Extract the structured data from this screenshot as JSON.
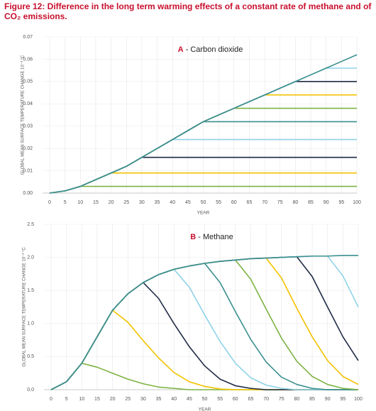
{
  "title": "Figure 12: Difference in the long term warming effects of a constant rate of methane and of CO₂ emissions.",
  "chart_data": [
    {
      "type": "line",
      "panel": "A",
      "subtitle": "- Carbon dioxide",
      "xlabel": "YEAR",
      "ylabel": "GLOBAL MEAN SURFACE TEMPERATURE CHANGE 10⁻³ °C",
      "x": [
        0,
        5,
        10,
        15,
        20,
        25,
        30,
        35,
        40,
        45,
        50,
        55,
        60,
        65,
        70,
        75,
        80,
        85,
        90,
        95,
        100
      ],
      "xlim": [
        0,
        100
      ],
      "xticks": [
        0,
        5,
        10,
        15,
        20,
        25,
        30,
        35,
        40,
        45,
        50,
        55,
        60,
        65,
        70,
        75,
        80,
        85,
        90,
        95,
        100
      ],
      "ylim": [
        0,
        0.07
      ],
      "yticks": [
        {
          "value": 0,
          "label": "0.00"
        },
        {
          "value": 0.01,
          "label": "0.01"
        },
        {
          "value": 0.02,
          "label": "0.02"
        },
        {
          "value": 0.03,
          "label": "0.03"
        },
        {
          "value": 0.04,
          "label": "0.04"
        },
        {
          "value": 0.05,
          "label": "0.05"
        },
        {
          "value": 0.06,
          "label": "0.06"
        },
        {
          "value": 0.07,
          "label": "0.07"
        }
      ],
      "grid": true,
      "series": [
        {
          "color": "#7cb342",
          "values": [
            0,
            0.001,
            0.003,
            0.003,
            0.003,
            0.003,
            0.003,
            0.003,
            0.003,
            0.003,
            0.003,
            0.003,
            0.003,
            0.003,
            0.003,
            0.003,
            0.003,
            0.003,
            0.003,
            0.003,
            0.003
          ]
        },
        {
          "color": "#f2c200",
          "values": [
            0,
            0.001,
            0.003,
            0.006,
            0.009,
            0.009,
            0.009,
            0.009,
            0.009,
            0.009,
            0.009,
            0.009,
            0.009,
            0.009,
            0.009,
            0.009,
            0.009,
            0.009,
            0.009,
            0.009,
            0.009
          ]
        },
        {
          "color": "#1f2a44",
          "values": [
            0,
            0.001,
            0.003,
            0.006,
            0.009,
            0.012,
            0.016,
            0.016,
            0.016,
            0.016,
            0.016,
            0.016,
            0.016,
            0.016,
            0.016,
            0.016,
            0.016,
            0.016,
            0.016,
            0.016,
            0.016
          ]
        },
        {
          "color": "#8fd3e8",
          "values": [
            0,
            0.001,
            0.003,
            0.006,
            0.009,
            0.012,
            0.016,
            0.02,
            0.024,
            0.024,
            0.024,
            0.024,
            0.024,
            0.024,
            0.024,
            0.024,
            0.024,
            0.024,
            0.024,
            0.024,
            0.024
          ]
        },
        {
          "color": "#3a8f8f",
          "values": [
            0,
            0.001,
            0.003,
            0.006,
            0.009,
            0.012,
            0.016,
            0.02,
            0.024,
            0.028,
            0.032,
            0.032,
            0.032,
            0.032,
            0.032,
            0.032,
            0.032,
            0.032,
            0.032,
            0.032,
            0.032
          ]
        },
        {
          "color": "#7cb342",
          "values": [
            0,
            0.001,
            0.003,
            0.006,
            0.009,
            0.012,
            0.016,
            0.02,
            0.024,
            0.028,
            0.032,
            0.035,
            0.038,
            0.038,
            0.038,
            0.038,
            0.038,
            0.038,
            0.038,
            0.038,
            0.038
          ]
        },
        {
          "color": "#f2c200",
          "values": [
            0,
            0.001,
            0.003,
            0.006,
            0.009,
            0.012,
            0.016,
            0.02,
            0.024,
            0.028,
            0.032,
            0.035,
            0.038,
            0.041,
            0.044,
            0.044,
            0.044,
            0.044,
            0.044,
            0.044,
            0.044
          ]
        },
        {
          "color": "#1f2a44",
          "values": [
            0,
            0.001,
            0.003,
            0.006,
            0.009,
            0.012,
            0.016,
            0.02,
            0.024,
            0.028,
            0.032,
            0.035,
            0.038,
            0.041,
            0.044,
            0.047,
            0.05,
            0.05,
            0.05,
            0.05,
            0.05
          ]
        },
        {
          "color": "#8fd3e8",
          "values": [
            0,
            0.001,
            0.003,
            0.006,
            0.009,
            0.012,
            0.016,
            0.02,
            0.024,
            0.028,
            0.032,
            0.035,
            0.038,
            0.041,
            0.044,
            0.047,
            0.05,
            0.053,
            0.056,
            0.056,
            0.056
          ]
        },
        {
          "color": "#3a8f8f",
          "values": [
            0,
            0.001,
            0.003,
            0.006,
            0.009,
            0.012,
            0.016,
            0.02,
            0.024,
            0.028,
            0.032,
            0.035,
            0.038,
            0.041,
            0.044,
            0.047,
            0.05,
            0.053,
            0.056,
            0.059,
            0.062
          ]
        }
      ]
    },
    {
      "type": "line",
      "panel": "B",
      "subtitle": "- Methane",
      "xlabel": "YEAR",
      "ylabel": "GLOBAL MEAN SURFACE TEMPERATURE CHANGE 10⁻³ °C",
      "x": [
        0,
        5,
        10,
        15,
        20,
        25,
        30,
        35,
        40,
        45,
        50,
        55,
        60,
        65,
        70,
        75,
        80,
        85,
        90,
        95,
        100
      ],
      "xlim": [
        0,
        100
      ],
      "xticks": [
        0,
        5,
        10,
        15,
        20,
        25,
        30,
        35,
        40,
        45,
        50,
        55,
        60,
        65,
        70,
        75,
        80,
        85,
        90,
        95,
        100
      ],
      "ylim": [
        0,
        2.5
      ],
      "yticks": [
        {
          "value": 0,
          "label": "0.0"
        },
        {
          "value": 0.5,
          "label": "0.5"
        },
        {
          "value": 1,
          "label": "1.0"
        },
        {
          "value": 1.5,
          "label": "1.5"
        },
        {
          "value": 2,
          "label": "2.0"
        },
        {
          "value": 2.5,
          "label": "2.5"
        }
      ],
      "grid": true,
      "series": [
        {
          "color": "#7cb342",
          "values": [
            0,
            0.12,
            0.4,
            0.34,
            0.25,
            0.16,
            0.09,
            0.04,
            0.02,
            0,
            0,
            0,
            0,
            0,
            0,
            0,
            0,
            0,
            0,
            0,
            0
          ]
        },
        {
          "color": "#f2c200",
          "values": [
            0,
            0.12,
            0.4,
            0.8,
            1.2,
            1.02,
            0.74,
            0.48,
            0.26,
            0.12,
            0.05,
            0.01,
            0,
            0,
            0,
            0,
            0,
            0,
            0,
            0,
            0
          ]
        },
        {
          "color": "#1f2a44",
          "values": [
            0,
            0.12,
            0.4,
            0.8,
            1.2,
            1.45,
            1.62,
            1.38,
            1.0,
            0.65,
            0.36,
            0.16,
            0.06,
            0.02,
            0,
            0,
            0,
            0,
            0,
            0,
            0
          ]
        },
        {
          "color": "#8fd3e8",
          "values": [
            0,
            0.12,
            0.4,
            0.8,
            1.2,
            1.45,
            1.62,
            1.74,
            1.82,
            1.55,
            1.13,
            0.73,
            0.4,
            0.18,
            0.07,
            0.02,
            0,
            0,
            0,
            0,
            0
          ]
        },
        {
          "color": "#3a8f8f",
          "values": [
            0,
            0.12,
            0.4,
            0.8,
            1.2,
            1.45,
            1.62,
            1.74,
            1.82,
            1.87,
            1.91,
            1.62,
            1.18,
            0.76,
            0.42,
            0.19,
            0.08,
            0.02,
            0,
            0,
            0
          ]
        },
        {
          "color": "#7cb342",
          "values": [
            0,
            0.12,
            0.4,
            0.8,
            1.2,
            1.45,
            1.62,
            1.74,
            1.82,
            1.87,
            1.91,
            1.94,
            1.96,
            1.67,
            1.22,
            0.78,
            0.43,
            0.2,
            0.08,
            0.02,
            0
          ]
        },
        {
          "color": "#f2c200",
          "values": [
            0,
            0.12,
            0.4,
            0.8,
            1.2,
            1.45,
            1.62,
            1.74,
            1.82,
            1.87,
            1.91,
            1.94,
            1.96,
            1.98,
            1.99,
            1.69,
            1.23,
            0.8,
            0.44,
            0.2,
            0.08
          ]
        },
        {
          "color": "#1f2a44",
          "values": [
            0,
            0.12,
            0.4,
            0.8,
            1.2,
            1.45,
            1.62,
            1.74,
            1.82,
            1.87,
            1.91,
            1.94,
            1.96,
            1.98,
            1.99,
            2.0,
            2.01,
            1.71,
            1.25,
            0.8,
            0.44
          ]
        },
        {
          "color": "#8fd3e8",
          "values": [
            0,
            0.12,
            0.4,
            0.8,
            1.2,
            1.45,
            1.62,
            1.74,
            1.82,
            1.87,
            1.91,
            1.94,
            1.96,
            1.98,
            1.99,
            2.0,
            2.01,
            2.02,
            2.02,
            1.72,
            1.25
          ]
        },
        {
          "color": "#3a8f8f",
          "values": [
            0,
            0.12,
            0.4,
            0.8,
            1.2,
            1.45,
            1.62,
            1.74,
            1.82,
            1.87,
            1.91,
            1.94,
            1.96,
            1.98,
            1.99,
            2.0,
            2.01,
            2.02,
            2.02,
            2.03,
            2.03
          ]
        }
      ]
    }
  ]
}
